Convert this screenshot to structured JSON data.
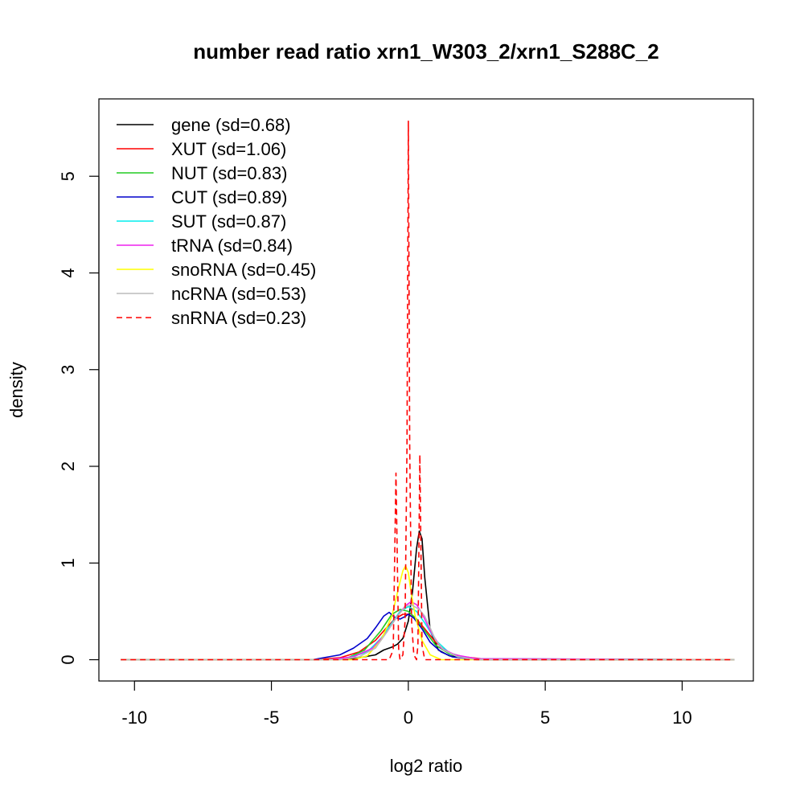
{
  "chart_data": {
    "type": "line",
    "title": "number read ratio xrn1_W303_2/xrn1_S288C_2",
    "xlabel": "log2 ratio",
    "ylabel": "density",
    "xlim": [
      -11.3,
      12.6
    ],
    "ylim": [
      -0.22,
      5.8
    ],
    "xticks": [
      -10,
      -5,
      0,
      5,
      10
    ],
    "xtick_labels": [
      "-10",
      "-5",
      "0",
      "5",
      "10"
    ],
    "yticks": [
      0,
      1,
      2,
      3,
      4,
      5
    ],
    "ytick_labels": [
      "0",
      "1",
      "2",
      "3",
      "4",
      "5"
    ],
    "grid": false,
    "legend_position": "top-left",
    "series": [
      {
        "name": "gene (sd=0.68)",
        "color": "#000000",
        "dash": "solid",
        "x": [
          -10.5,
          -3.5,
          -2.0,
          -1.2,
          -0.9,
          -0.6,
          -0.4,
          -0.2,
          0.0,
          0.15,
          0.3,
          0.4,
          0.5,
          0.6,
          0.8,
          1.1,
          1.5,
          2.5,
          11.9
        ],
        "y": [
          0,
          0,
          0.01,
          0.05,
          0.1,
          0.13,
          0.16,
          0.22,
          0.4,
          0.7,
          1.15,
          1.33,
          1.25,
          0.85,
          0.3,
          0.1,
          0.04,
          0.0,
          0
        ]
      },
      {
        "name": "XUT (sd=1.06)",
        "color": "#ff0000",
        "dash": "solid",
        "x": [
          -10.5,
          -3.5,
          -2.5,
          -1.8,
          -1.2,
          -0.8,
          -0.5,
          -0.2,
          0.0,
          0.3,
          0.6,
          1.0,
          1.5,
          2.0,
          3.0,
          11.9
        ],
        "y": [
          0,
          0,
          0.02,
          0.08,
          0.2,
          0.33,
          0.42,
          0.47,
          0.47,
          0.42,
          0.32,
          0.18,
          0.07,
          0.03,
          0,
          0
        ]
      },
      {
        "name": "NUT (sd=0.83)",
        "color": "#22cc22",
        "dash": "solid",
        "x": [
          -10.5,
          -3.0,
          -2.2,
          -1.6,
          -1.0,
          -0.6,
          -0.3,
          0.0,
          0.3,
          0.6,
          1.0,
          1.5,
          2.2,
          11.9
        ],
        "y": [
          0,
          0,
          0.02,
          0.1,
          0.3,
          0.47,
          0.52,
          0.5,
          0.42,
          0.3,
          0.15,
          0.06,
          0.01,
          0
        ]
      },
      {
        "name": "CUT (sd=0.89)",
        "color": "#0000cc",
        "dash": "solid",
        "x": [
          -10.5,
          -3.5,
          -2.5,
          -2.0,
          -1.5,
          -1.2,
          -0.9,
          -0.7,
          -0.5,
          -0.3,
          -0.1,
          0.0,
          0.2,
          0.5,
          0.8,
          1.2,
          1.6,
          2.2,
          3.0,
          11.9
        ],
        "y": [
          0,
          0,
          0.05,
          0.12,
          0.22,
          0.33,
          0.45,
          0.49,
          0.44,
          0.42,
          0.45,
          0.47,
          0.43,
          0.32,
          0.18,
          0.08,
          0.03,
          0.01,
          0,
          0
        ]
      },
      {
        "name": "SUT (sd=0.87)",
        "color": "#00eeee",
        "dash": "solid",
        "x": [
          -10.5,
          -3.0,
          -2.2,
          -1.5,
          -1.0,
          -0.6,
          -0.3,
          0.0,
          0.3,
          0.6,
          1.0,
          1.5,
          2.2,
          11.9
        ],
        "y": [
          0,
          0,
          0.02,
          0.08,
          0.22,
          0.38,
          0.5,
          0.55,
          0.5,
          0.38,
          0.2,
          0.07,
          0.01,
          0
        ]
      },
      {
        "name": "tRNA (sd=0.84)",
        "color": "#ee22ee",
        "dash": "solid",
        "x": [
          -10.5,
          -3.0,
          -2.0,
          -1.3,
          -0.8,
          -0.4,
          -0.1,
          0.1,
          0.3,
          0.5,
          0.8,
          1.2,
          1.7,
          2.5,
          11.9
        ],
        "y": [
          0,
          0,
          0.03,
          0.12,
          0.28,
          0.45,
          0.56,
          0.6,
          0.57,
          0.48,
          0.3,
          0.12,
          0.05,
          0.01,
          0
        ]
      },
      {
        "name": "snoRNA (sd=0.45)",
        "color": "#ffff00",
        "dash": "solid",
        "x": [
          -10.5,
          -2.0,
          -1.5,
          -1.0,
          -0.6,
          -0.35,
          -0.2,
          -0.1,
          0.0,
          0.1,
          0.25,
          0.5,
          0.8,
          1.2,
          11.9
        ],
        "y": [
          0,
          0,
          0.04,
          0.2,
          0.45,
          0.75,
          0.92,
          0.97,
          0.9,
          0.7,
          0.45,
          0.2,
          0.05,
          0.0,
          0
        ]
      },
      {
        "name": "ncRNA (sd=0.53)",
        "color": "#bbbbbb",
        "dash": "solid",
        "x": [
          -10.5,
          -2.5,
          -1.8,
          -1.2,
          -0.8,
          -0.4,
          -0.1,
          0.1,
          0.4,
          0.6,
          0.8,
          1.0,
          1.3,
          1.8,
          2.5,
          11.9
        ],
        "y": [
          0,
          0,
          0.03,
          0.12,
          0.28,
          0.45,
          0.55,
          0.57,
          0.52,
          0.45,
          0.33,
          0.2,
          0.1,
          0.03,
          0,
          0
        ]
      },
      {
        "name": "snRNA (sd=0.23)",
        "color": "#ff0000",
        "dash": "dashed",
        "x": [
          -10.5,
          -0.7,
          -0.55,
          -0.45,
          -0.35,
          -0.3,
          -0.2,
          -0.12,
          -0.05,
          0.0,
          0.05,
          0.12,
          0.2,
          0.3,
          0.35,
          0.42,
          0.5,
          0.6,
          0.8,
          11.9
        ],
        "y": [
          0,
          0,
          0.1,
          1.93,
          0.1,
          0.0,
          0.05,
          0.4,
          2.2,
          5.57,
          2.2,
          0.4,
          0.05,
          0.0,
          0.15,
          2.12,
          0.15,
          0.0,
          0,
          0
        ]
      }
    ]
  }
}
